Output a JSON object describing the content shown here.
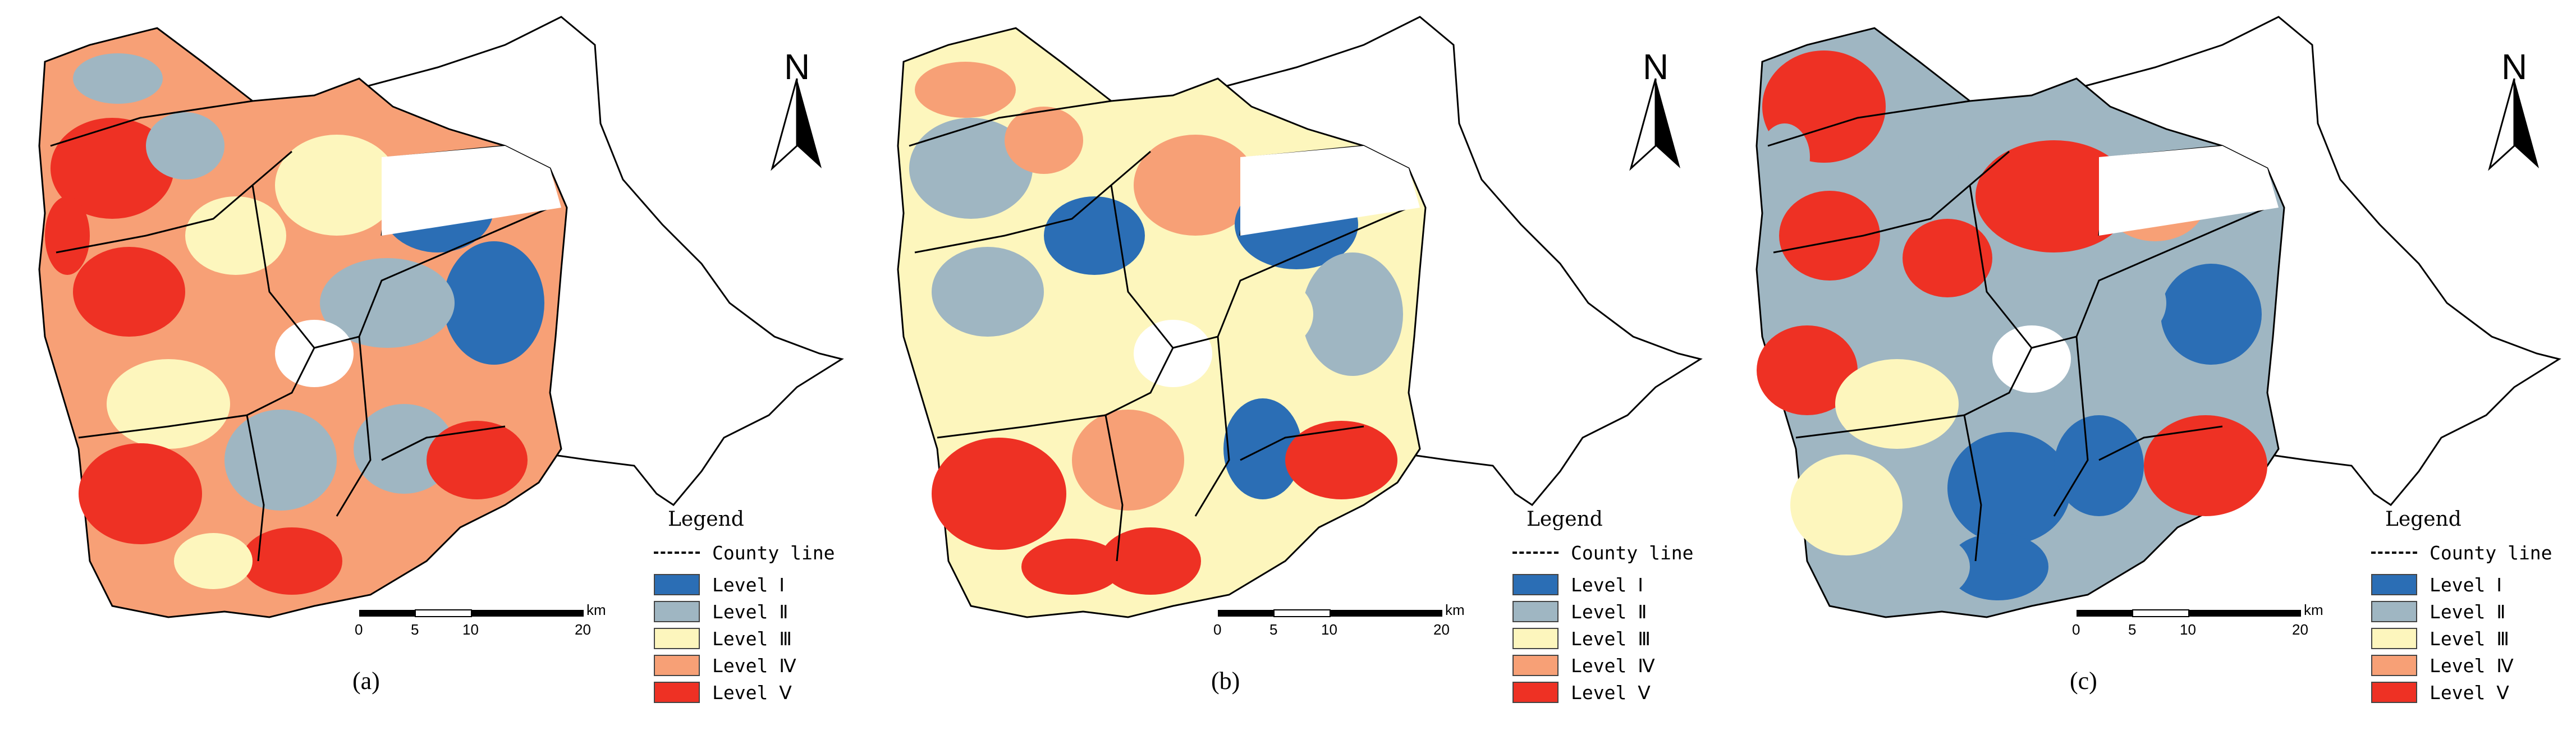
{
  "panels": [
    {
      "caption": "(a)"
    },
    {
      "caption": "(b)"
    },
    {
      "caption": "(c)"
    }
  ],
  "legend": {
    "title": "Legend",
    "county_line_label": "County line",
    "levels": [
      {
        "label": "Level  Ⅰ",
        "color": "#2b6eb5"
      },
      {
        "label": "Level  Ⅱ",
        "color": "#9fb6c2"
      },
      {
        "label": "Level  Ⅲ",
        "color": "#fdf6bd"
      },
      {
        "label": "Level  Ⅳ",
        "color": "#f7a076"
      },
      {
        "label": "Level  Ⅴ",
        "color": "#ee3124"
      }
    ]
  },
  "scale_bar": {
    "ticks": [
      "0",
      "5",
      "10",
      "20"
    ],
    "unit": "km"
  },
  "north_arrow": {
    "letter": "N"
  }
}
